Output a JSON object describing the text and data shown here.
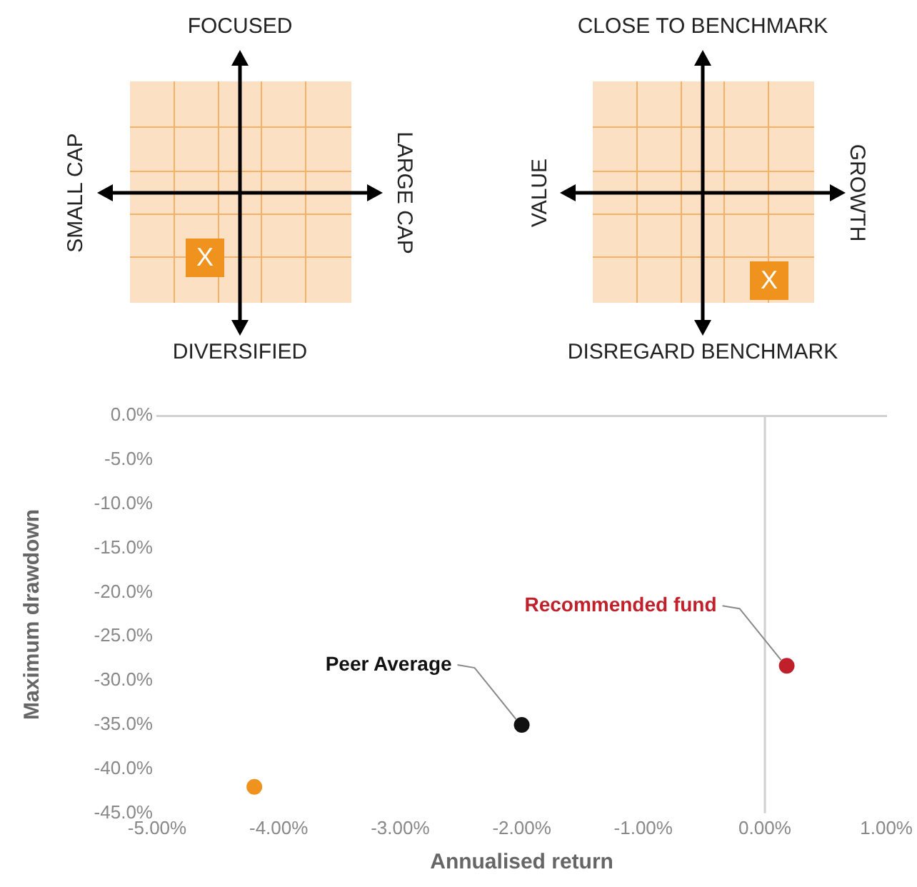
{
  "chart_data": [
    {
      "type": "other",
      "annotations": [
        "FOCUSED",
        "DIVERSIFIED",
        "SMALL CAP",
        "LARGE CAP",
        "X"
      ]
    },
    {
      "type": "other",
      "annotations": [
        "CLOSE TO BENCHMARK",
        "DISREGARD BENCHMARK",
        "VALUE",
        "GROWTH",
        "X"
      ]
    },
    {
      "type": "scatter",
      "xlabel": "Annualised return",
      "ylabel": "Maximum drawdown",
      "xlim": [
        -5,
        1
      ],
      "xticks": [
        {
          "value": -5,
          "label": "-5.00%"
        },
        {
          "value": -4,
          "label": "-4.00%"
        },
        {
          "value": -3,
          "label": "-3.00%"
        },
        {
          "value": -2,
          "label": "-2.00%"
        },
        {
          "value": -1,
          "label": "-1.00%"
        },
        {
          "value": 0,
          "label": "0.00%"
        },
        {
          "value": 1,
          "label": "1.00%"
        }
      ],
      "ylim": [
        -45,
        0
      ],
      "yticks": [
        {
          "value": 0,
          "label": "0.0%"
        },
        {
          "value": -5,
          "label": "-5.0%"
        },
        {
          "value": -10,
          "label": "-10.0%"
        },
        {
          "value": -15,
          "label": "-15.0%"
        },
        {
          "value": -20,
          "label": "-20.0%"
        },
        {
          "value": -25,
          "label": "-25.0%"
        },
        {
          "value": -30,
          "label": "-30.0%"
        },
        {
          "value": -35,
          "label": "-35.0%"
        },
        {
          "value": -40,
          "label": "-40.0%"
        },
        {
          "value": -45,
          "label": "-45.0%"
        }
      ],
      "series": [
        {
          "name": "Recommended fund",
          "color": "#c0202a",
          "x": [
            0.18
          ],
          "values": [
            -28.3
          ]
        },
        {
          "name": "Peer Average",
          "color": "#111111",
          "x": [
            -2.0
          ],
          "values": [
            -35
          ]
        },
        {
          "color": "#f0931e",
          "x": [
            -4.2
          ],
          "values": [
            -42
          ]
        }
      ],
      "ref_lines": [
        {
          "axis": "x",
          "value": 0,
          "color": "#d0d0d0"
        }
      ],
      "grid": false,
      "legend": false,
      "marker": "circle"
    }
  ]
}
